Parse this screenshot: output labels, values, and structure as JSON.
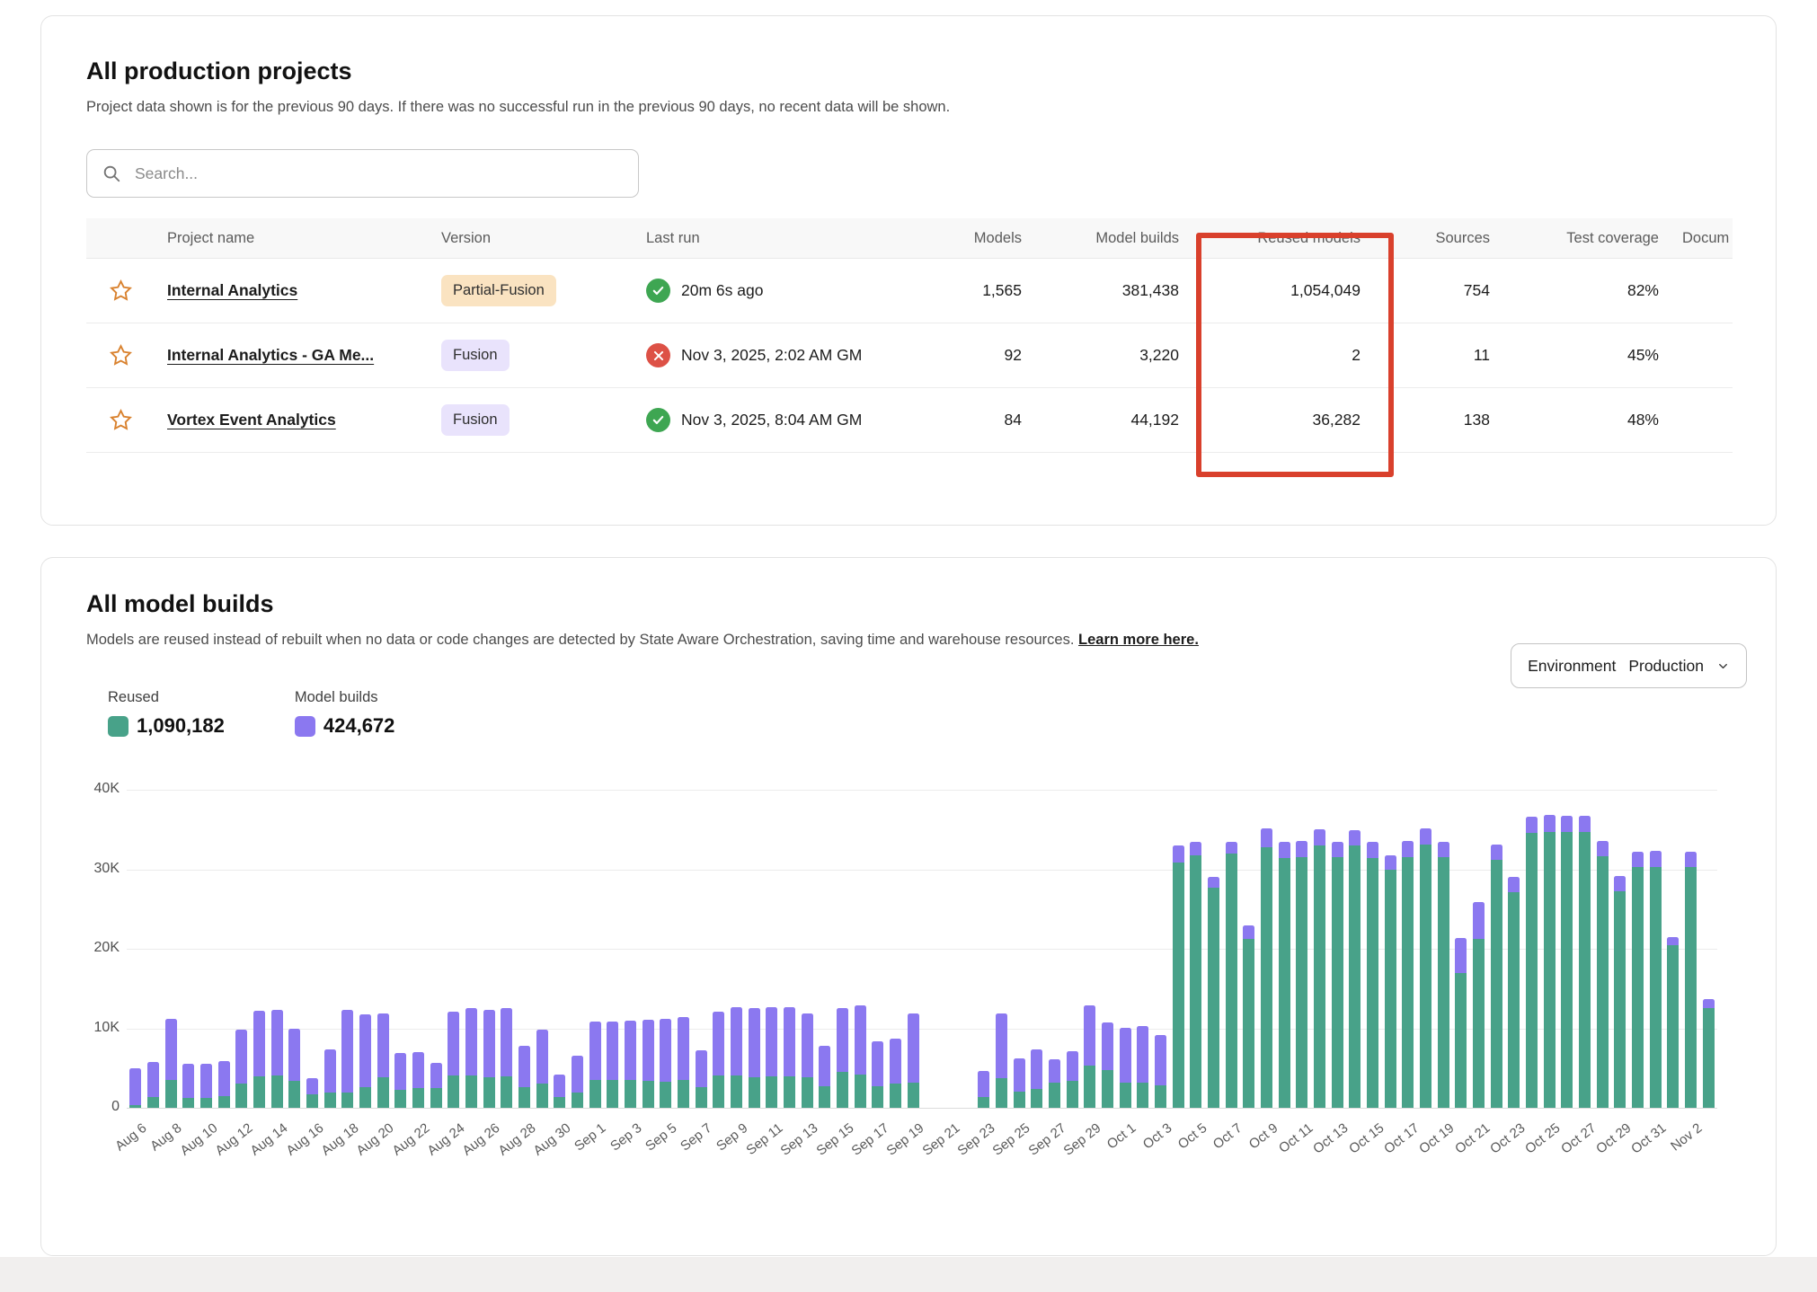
{
  "colors": {
    "bar_green": "#48a289",
    "bar_purple": "#8b78f0",
    "annotation_red": "#d9402c",
    "badge_peach": "#fae3c1",
    "badge_lavender": "#e9e3fc",
    "status_success": "#3ea652",
    "status_error": "#dd5146",
    "star_orange": "#d9822f"
  },
  "projects_card": {
    "title": "All production projects",
    "subtitle": "Project data shown is for the previous 90 days. If there was no successful run in the previous 90 days, no recent data will be shown.",
    "search_placeholder": "Search...",
    "table": {
      "columns": [
        "",
        "Project name",
        "Version",
        "Last run",
        "Models",
        "Model builds",
        "Reused models",
        "Sources",
        "Test coverage",
        "Docum"
      ],
      "rows": [
        {
          "name": "Internal Analytics",
          "version": "Partial-Fusion",
          "version_style": "peach",
          "status": "success",
          "last_run": "20m 6s ago",
          "models": "1,565",
          "model_builds": "381,438",
          "reused_models": "1,054,049",
          "sources": "754",
          "test_coverage": "82%"
        },
        {
          "name": "Internal Analytics - GA Me...",
          "version": "Fusion",
          "version_style": "lavender",
          "status": "error",
          "last_run": "Nov 3, 2025, 2:02 AM GM",
          "models": "92",
          "model_builds": "3,220",
          "reused_models": "2",
          "sources": "11",
          "test_coverage": "45%"
        },
        {
          "name": "Vortex Event Analytics",
          "version": "Fusion",
          "version_style": "lavender",
          "status": "success",
          "last_run": "Nov 3, 2025, 8:04 AM GM",
          "models": "84",
          "model_builds": "44,192",
          "reused_models": "36,282",
          "sources": "138",
          "test_coverage": "48%"
        }
      ]
    }
  },
  "builds_card": {
    "title": "All model builds",
    "subtitle_text": "Models are reused instead of rebuilt when no data or code changes are detected by State Aware Orchestration, saving time and warehouse resources.",
    "learn_more": "Learn more here.",
    "environment_label": "Environment",
    "environment_value": "Production",
    "legend": [
      {
        "label": "Reused",
        "value": "1,090,182"
      },
      {
        "label": "Model builds",
        "value": "424,672"
      }
    ]
  },
  "chart_data": {
    "type": "bar",
    "stacked": true,
    "title": "All model builds",
    "xlabel": "",
    "ylabel": "",
    "ylim": [
      0,
      40000
    ],
    "yticks": [
      "0",
      "10K",
      "20K",
      "30K",
      "40K"
    ],
    "tick_every": 2,
    "legend_position": "top-left",
    "grid": true,
    "x": [
      "Aug 6",
      "Aug 7",
      "Aug 8",
      "Aug 9",
      "Aug 10",
      "Aug 11",
      "Aug 12",
      "Aug 13",
      "Aug 14",
      "Aug 15",
      "Aug 16",
      "Aug 17",
      "Aug 18",
      "Aug 19",
      "Aug 20",
      "Aug 21",
      "Aug 22",
      "Aug 23",
      "Aug 24",
      "Aug 25",
      "Aug 26",
      "Aug 27",
      "Aug 28",
      "Aug 29",
      "Aug 30",
      "Aug 31",
      "Sep 1",
      "Sep 2",
      "Sep 3",
      "Sep 4",
      "Sep 5",
      "Sep 6",
      "Sep 7",
      "Sep 8",
      "Sep 9",
      "Sep 10",
      "Sep 11",
      "Sep 12",
      "Sep 13",
      "Sep 14",
      "Sep 15",
      "Sep 16",
      "Sep 17",
      "Sep 18",
      "Sep 19",
      "Sep 20",
      "Sep 21",
      "Sep 22",
      "Sep 23",
      "Sep 24",
      "Sep 25",
      "Sep 26",
      "Sep 27",
      "Sep 28",
      "Sep 29",
      "Sep 30",
      "Oct 1",
      "Oct 2",
      "Oct 3",
      "Oct 4",
      "Oct 5",
      "Oct 6",
      "Oct 7",
      "Oct 8",
      "Oct 9",
      "Oct 10",
      "Oct 11",
      "Oct 12",
      "Oct 13",
      "Oct 14",
      "Oct 15",
      "Oct 16",
      "Oct 17",
      "Oct 18",
      "Oct 19",
      "Oct 20",
      "Oct 21",
      "Oct 22",
      "Oct 23",
      "Oct 24",
      "Oct 25",
      "Oct 26",
      "Oct 27",
      "Oct 28",
      "Oct 29",
      "Oct 30",
      "Oct 31",
      "Nov 1",
      "Nov 2",
      "Nov 3"
    ],
    "series": [
      {
        "name": "Reused",
        "total": 1090182,
        "values": [
          300,
          1400,
          3500,
          1300,
          1300,
          1500,
          3000,
          4000,
          4100,
          3400,
          1700,
          1900,
          1900,
          2600,
          3900,
          2300,
          2500,
          2500,
          4100,
          4100,
          3900,
          4000,
          2600,
          3100,
          1400,
          1900,
          3500,
          3500,
          3500,
          3400,
          3300,
          3500,
          2600,
          4100,
          4100,
          3900,
          4000,
          4000,
          3900,
          2700,
          4500,
          4200,
          2700,
          3100,
          3200,
          null,
          null,
          null,
          1400,
          3700,
          2000,
          2400,
          3200,
          3400,
          5300,
          4800,
          3200,
          3200,
          2800,
          30900,
          31700,
          27700,
          32000,
          21300,
          32800,
          31400,
          31500,
          33000,
          31500,
          33000,
          31400,
          30000,
          31500,
          33100,
          31500,
          17000,
          21200,
          31200,
          27100,
          34600,
          34700,
          34700,
          34700,
          31600,
          27200,
          30300,
          30300,
          20400,
          30300,
          12600
        ]
      },
      {
        "name": "Model builds",
        "total": 424672,
        "values": [
          4700,
          4400,
          7700,
          4200,
          4200,
          4400,
          6800,
          8200,
          8200,
          6600,
          2000,
          5400,
          10400,
          9200,
          8000,
          4600,
          4500,
          3100,
          8000,
          8400,
          8400,
          8500,
          5200,
          6700,
          2800,
          4700,
          7400,
          7300,
          7500,
          7700,
          7900,
          7900,
          4600,
          8000,
          8600,
          8600,
          8700,
          8700,
          8000,
          5100,
          8000,
          8700,
          5700,
          5600,
          8700,
          null,
          null,
          null,
          3200,
          8200,
          4200,
          4900,
          2900,
          3700,
          7600,
          5900,
          6900,
          7100,
          6300,
          2100,
          1800,
          1300,
          1500,
          1600,
          2300,
          2100,
          2100,
          2000,
          2000,
          1900,
          2100,
          1800,
          2100,
          2000,
          1900,
          4400,
          4700,
          1900,
          1900,
          2000,
          2100,
          2000,
          2000,
          2000,
          1900,
          1900,
          2000,
          1100,
          1900,
          1100
        ]
      }
    ],
    "gap_dates": [
      "Sep 20",
      "Sep 21",
      "Sep 22"
    ]
  }
}
